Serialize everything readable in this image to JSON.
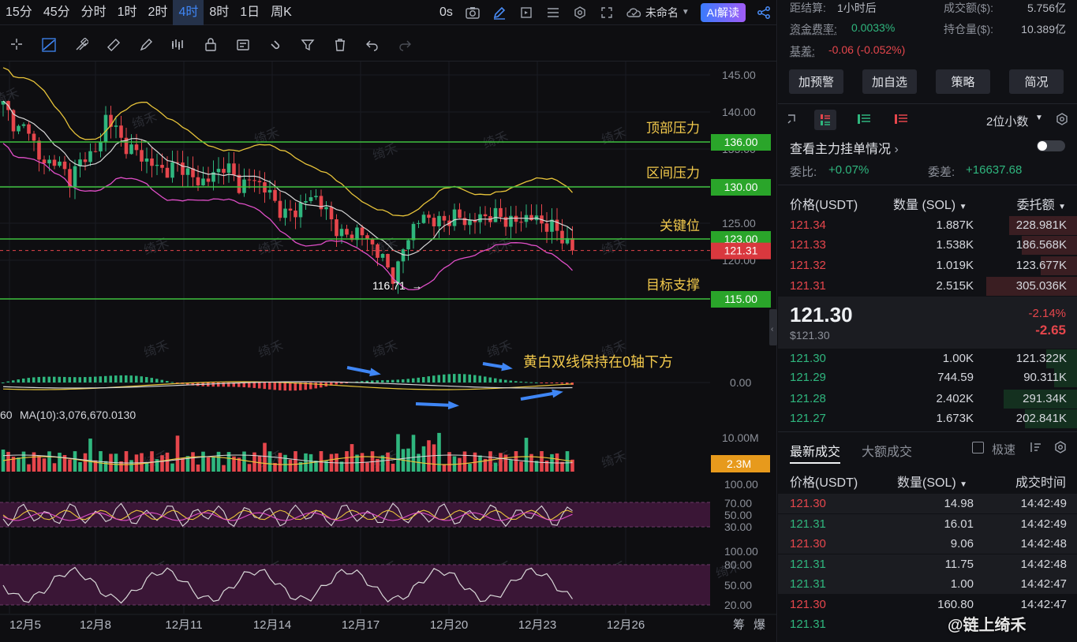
{
  "timeframes": [
    "15分",
    "45分",
    "分时",
    "1时",
    "2时",
    "4时",
    "8时",
    "1日",
    "周K"
  ],
  "active_timeframe": "4时",
  "topbar": {
    "countdown": "0s",
    "layout_name": "未命名",
    "ai_label": "AI解读"
  },
  "colors": {
    "up": "#2fb67e",
    "down": "#e6464c",
    "accent": "#3f86f5",
    "yellow": "#e8c43a",
    "white": "#d8d8d8",
    "magenta": "#e04fc8",
    "level": "#3fc13f",
    "label": "#f2c94c"
  },
  "toolbar_icons": [
    "crosshair-icon",
    "trend-line-icon",
    "fib-icon",
    "ruler-icon",
    "brush-icon",
    "pattern-icon",
    "lock-icon",
    "text-note-icon",
    "magnet-icon",
    "filter-icon",
    "trash-icon",
    "undo-icon",
    "redo-icon"
  ],
  "watermark": "绮禾",
  "price_axis": [
    "145.00",
    "140.00",
    "135.00",
    "130.00",
    "125.00",
    "120.00"
  ],
  "levels": [
    {
      "price": "136.00",
      "label": "顶部压力"
    },
    {
      "price": "130.00",
      "label": "区间压力"
    },
    {
      "price": "123.00",
      "label": "关键位"
    },
    {
      "price": "115.00",
      "label": "目标支撑"
    }
  ],
  "current_price_tag": "121.31",
  "low_marker": "116.71",
  "macd": {
    "annotation": "黄白双线保持在0轴下方",
    "zero_label": "0.00"
  },
  "volume": {
    "ma_text": "MA(10):3,076,670.0130",
    "ma_prefix": "60",
    "axis_top": "10.00M",
    "current": "2.3M"
  },
  "rsi_axis": [
    "100.00",
    "70.00",
    "50.00",
    "30.00"
  ],
  "kdj_axis": [
    "100.00",
    "80.00",
    "50.00",
    "20.00"
  ],
  "date_axis": [
    "12月5",
    "12月8",
    "12月11",
    "12月14",
    "12月17",
    "12月20",
    "12月23",
    "12月26"
  ],
  "date_axis_right": [
    "筹",
    "爆"
  ],
  "market_info": {
    "settle_label": "距结算:",
    "settle_value": "1小时后",
    "turnover_label": "成交额($):",
    "turnover_value": "5.756亿",
    "funding_label": "资金费率:",
    "funding_value": "0.0033%",
    "oi_label": "持仓量($):",
    "oi_value": "10.389亿",
    "basis_label": "基差:",
    "basis_value": "-0.06 (-0.052%)"
  },
  "action_buttons": [
    "加预警",
    "加自选",
    "策略",
    "简况"
  ],
  "orderbook": {
    "decimals": "2位小数",
    "main_orders": "查看主力挂单情况",
    "ratio_label": "委比:",
    "ratio_value": "+0.07%",
    "diff_label": "委差:",
    "diff_value": "+16637.68",
    "headers": [
      "价格(USDT)",
      "数量 (SOL)",
      "委托额"
    ],
    "asks": [
      {
        "price": "121.34",
        "qty": "1.887K",
        "total": "228.981K",
        "fill": 0.75
      },
      {
        "price": "121.33",
        "qty": "1.538K",
        "total": "186.568K",
        "fill": 0.61
      },
      {
        "price": "121.32",
        "qty": "1.019K",
        "total": "123.677K",
        "fill": 0.4
      },
      {
        "price": "121.31",
        "qty": "2.515K",
        "total": "305.036K",
        "fill": 1.0
      }
    ],
    "mid_price": "121.30",
    "mid_usd": "$121.30",
    "change_pct": "-2.14%",
    "change_abs": "-2.65",
    "bids": [
      {
        "price": "121.30",
        "qty": "1.00K",
        "total": "121.322K",
        "fill": 0.4
      },
      {
        "price": "121.29",
        "qty": "744.59",
        "total": "90.311K",
        "fill": 0.3
      },
      {
        "price": "121.28",
        "qty": "2.402K",
        "total": "291.34K",
        "fill": 0.95
      },
      {
        "price": "121.27",
        "qty": "1.673K",
        "total": "202.841K",
        "fill": 0.67
      }
    ]
  },
  "trades": {
    "tab_latest": "最新成交",
    "tab_large": "大额成交",
    "fast_label": "极速",
    "headers": [
      "价格(USDT)",
      "数量(SOL)",
      "成交时间"
    ],
    "rows": [
      {
        "price": "121.30",
        "qty": "14.98",
        "time": "14:42:49",
        "side": "down"
      },
      {
        "price": "121.31",
        "qty": "16.01",
        "time": "14:42:49",
        "side": "up"
      },
      {
        "price": "121.30",
        "qty": "9.06",
        "time": "14:42:48",
        "side": "down"
      },
      {
        "price": "121.31",
        "qty": "11.75",
        "time": "14:42:48",
        "side": "up"
      },
      {
        "price": "121.31",
        "qty": "1.00",
        "time": "14:42:47",
        "side": "up"
      },
      {
        "price": "121.30",
        "qty": "160.80",
        "time": "14:42:47",
        "side": "down"
      },
      {
        "price": "121.31",
        "qty": "",
        "time": "",
        "side": "up"
      }
    ]
  },
  "brand_watermark": "@链上绮禾"
}
